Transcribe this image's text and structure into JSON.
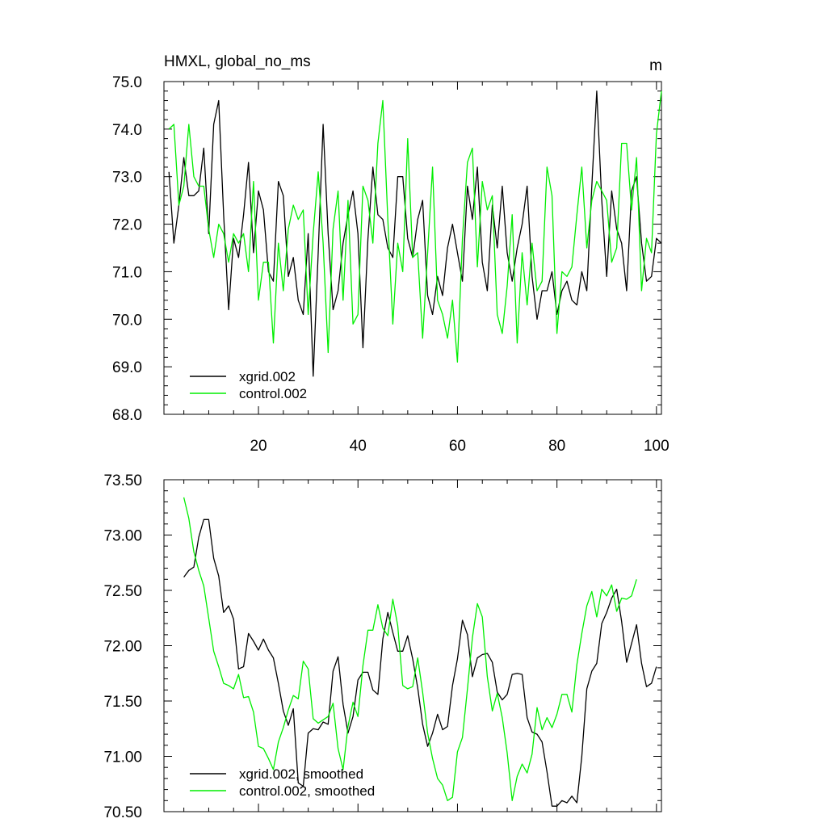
{
  "chart_data": [
    {
      "type": "line",
      "title": "HMXL, global_no_ms",
      "units": "m",
      "xlim": [
        1,
        101
      ],
      "ylim": [
        68.0,
        75.0
      ],
      "x_ticks": [
        "20",
        "40",
        "60",
        "80",
        "100"
      ],
      "y_ticks": [
        "68.0",
        "69.0",
        "70.0",
        "71.0",
        "72.0",
        "73.0",
        "74.0",
        "75.0"
      ],
      "legend_position": "bottom-left",
      "series": [
        {
          "name": "xgrid.002",
          "color": "#000000",
          "x_start": 2,
          "values": [
            73.1,
            71.6,
            72.4,
            73.4,
            72.6,
            72.6,
            72.7,
            73.6,
            71.8,
            74.1,
            74.6,
            72.2,
            70.2,
            71.7,
            71.3,
            72.2,
            73.3,
            71.4,
            72.7,
            72.3,
            71.0,
            70.8,
            72.9,
            72.6,
            70.9,
            71.3,
            70.4,
            70.1,
            71.8,
            68.8,
            71.4,
            74.1,
            71.8,
            70.2,
            70.6,
            71.6,
            72.2,
            72.7,
            71.8,
            69.4,
            71.7,
            73.2,
            72.2,
            72.1,
            71.5,
            71.3,
            73.0,
            73.0,
            71.7,
            71.3,
            72.1,
            72.5,
            70.5,
            70.1,
            70.9,
            70.5,
            71.5,
            72.0,
            71.4,
            70.8,
            72.8,
            72.1,
            73.2,
            71.2,
            70.6,
            72.4,
            71.5,
            72.8,
            71.4,
            70.8,
            71.5,
            72.0,
            72.8,
            70.9,
            70.0,
            70.6,
            70.6,
            71.0,
            70.1,
            70.6,
            70.8,
            70.4,
            70.3,
            71.0,
            70.6,
            72.8,
            74.8,
            72.5,
            70.9,
            72.7,
            71.9,
            71.6,
            70.6,
            72.7,
            73.0,
            71.6,
            70.8,
            70.9,
            71.7,
            71.6
          ]
        },
        {
          "name": "control.002",
          "color": "#00ee00",
          "x_start": 2,
          "values": [
            74.0,
            74.1,
            72.4,
            72.8,
            74.1,
            73.0,
            72.8,
            72.8,
            71.9,
            71.3,
            72.0,
            71.8,
            71.2,
            71.8,
            71.6,
            71.8,
            71.0,
            72.9,
            70.4,
            71.2,
            71.2,
            69.5,
            71.6,
            70.6,
            71.9,
            72.4,
            72.1,
            72.3,
            70.1,
            71.8,
            73.1,
            71.6,
            69.3,
            71.9,
            72.7,
            70.4,
            72.5,
            69.9,
            70.1,
            72.8,
            72.5,
            71.6,
            73.7,
            74.6,
            72.1,
            69.9,
            71.6,
            71.0,
            73.8,
            71.3,
            71.4,
            69.6,
            71.4,
            73.2,
            70.4,
            70.1,
            69.6,
            70.4,
            69.1,
            71.7,
            73.3,
            73.6,
            71.1,
            72.9,
            72.3,
            72.6,
            70.1,
            69.7,
            70.7,
            72.2,
            69.5,
            71.4,
            70.3,
            71.6,
            70.6,
            70.8,
            73.2,
            72.6,
            69.7,
            71.0,
            70.9,
            71.1,
            72.2,
            73.2,
            71.5,
            72.5,
            72.9,
            72.7,
            72.5,
            71.2,
            71.5,
            73.7,
            73.7,
            72.3,
            73.4,
            70.6,
            71.7,
            71.4,
            73.9,
            74.8
          ]
        }
      ]
    },
    {
      "type": "line",
      "xlim": [
        1,
        101
      ],
      "ylim": [
        70.5,
        73.5
      ],
      "y_ticks": [
        "70.50",
        "71.00",
        "71.50",
        "72.00",
        "72.50",
        "73.00",
        "73.50"
      ],
      "legend_position": "bottom-left",
      "series": [
        {
          "name": "xgrid.002, smoothed",
          "color": "#000000",
          "x_start": 5,
          "values": [
            72.62,
            72.68,
            72.71,
            72.98,
            73.14,
            73.14,
            72.79,
            72.63,
            72.3,
            72.36,
            72.24,
            71.79,
            71.81,
            72.11,
            72.04,
            71.96,
            72.06,
            71.96,
            71.89,
            71.66,
            71.41,
            71.28,
            71.43,
            70.76,
            70.73,
            71.21,
            71.25,
            71.24,
            71.31,
            71.29,
            71.77,
            71.9,
            71.47,
            71.21,
            71.36,
            71.69,
            71.76,
            71.76,
            71.6,
            71.56,
            72.06,
            72.3,
            72.12,
            71.95,
            71.95,
            72.09,
            71.88,
            71.62,
            71.29,
            71.09,
            71.21,
            71.38,
            71.24,
            71.27,
            71.64,
            71.88,
            72.23,
            72.1,
            71.72,
            71.89,
            71.92,
            71.93,
            71.85,
            71.58,
            71.51,
            71.56,
            71.74,
            71.75,
            71.74,
            71.35,
            71.22,
            71.2,
            71.13,
            70.86,
            70.55,
            70.55,
            70.6,
            70.58,
            70.64,
            70.58,
            71.0,
            71.61,
            71.77,
            71.84,
            72.2,
            72.3,
            72.43,
            72.51,
            72.22,
            71.85,
            72.02,
            72.19,
            71.84,
            71.63,
            71.66,
            71.81
          ]
        },
        {
          "name": "control.002, smoothed",
          "color": "#00ee00",
          "x_start": 5,
          "values": [
            73.34,
            73.15,
            72.85,
            72.68,
            72.54,
            72.25,
            71.95,
            71.81,
            71.66,
            71.64,
            71.61,
            71.74,
            71.53,
            71.54,
            71.4,
            71.09,
            71.07,
            70.98,
            70.88,
            71.13,
            71.26,
            71.42,
            71.55,
            71.52,
            71.86,
            71.79,
            71.34,
            71.3,
            71.33,
            71.36,
            71.48,
            71.07,
            70.88,
            71.27,
            71.49,
            71.36,
            71.82,
            72.14,
            72.14,
            72.37,
            72.16,
            72.09,
            72.42,
            72.18,
            71.64,
            71.61,
            71.63,
            71.89,
            71.58,
            71.21,
            70.98,
            70.8,
            70.74,
            70.6,
            70.63,
            71.04,
            71.17,
            71.61,
            72.07,
            72.38,
            72.26,
            71.72,
            71.41,
            71.57,
            71.35,
            71.03,
            70.6,
            70.82,
            70.93,
            70.85,
            71.02,
            71.44,
            71.24,
            71.35,
            71.26,
            71.38,
            71.56,
            71.56,
            71.4,
            71.83,
            72.11,
            72.36,
            72.49,
            72.26,
            72.51,
            72.45,
            72.55,
            72.31,
            72.43,
            72.42,
            72.45,
            72.6
          ]
        }
      ]
    }
  ]
}
